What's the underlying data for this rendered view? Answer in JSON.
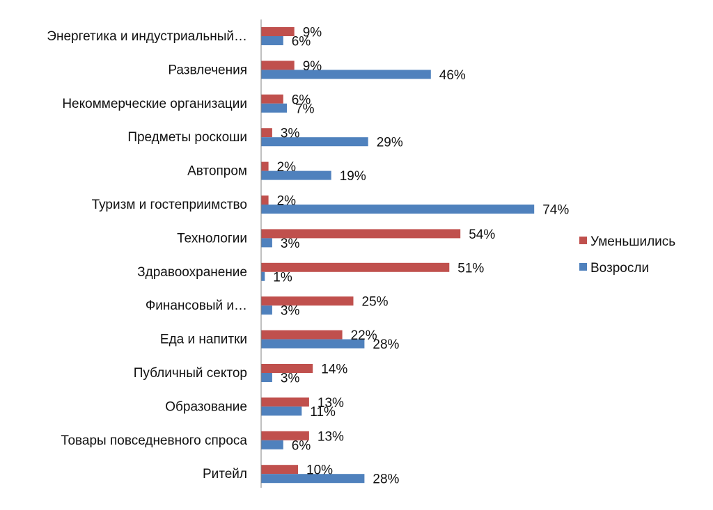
{
  "chart_data": {
    "type": "bar",
    "orientation": "horizontal",
    "title": "",
    "xlabel": "",
    "ylabel": "",
    "categories": [
      "Энергетика и индустриальный…",
      "Развлечения",
      "Некоммерческие организации",
      "Предметы роскоши",
      "Автопром",
      "Туризм и гостеприимство",
      "Технологии",
      "Здравоохранение",
      "Финансовый и…",
      "Еда и напитки",
      "Публичный сектор",
      "Образование",
      "Товары повседневного спроса",
      "Ритейл"
    ],
    "series": [
      {
        "name": "Уменьшились",
        "color": "#c0504d",
        "values": [
          9,
          9,
          6,
          3,
          2,
          2,
          54,
          51,
          25,
          22,
          14,
          13,
          13,
          10
        ],
        "labels": [
          "9%",
          "9%",
          "6%",
          "3%",
          "2%",
          "2%",
          "54%",
          "51%",
          "25%",
          "22%",
          "14%",
          "13%",
          "13%",
          "10%"
        ]
      },
      {
        "name": "Возросли",
        "color": "#4f81bd",
        "values": [
          6,
          46,
          7,
          29,
          19,
          74,
          3,
          1,
          3,
          28,
          3,
          11,
          6,
          28
        ],
        "labels": [
          "6%",
          "46%",
          "7%",
          "29%",
          "19%",
          "74%",
          "3%",
          "1%",
          "3%",
          "28%",
          "3%",
          "11%",
          "6%",
          "28%"
        ]
      }
    ],
    "xlim": [
      0,
      100
    ],
    "grid": false,
    "legend": {
      "position": "right"
    }
  }
}
